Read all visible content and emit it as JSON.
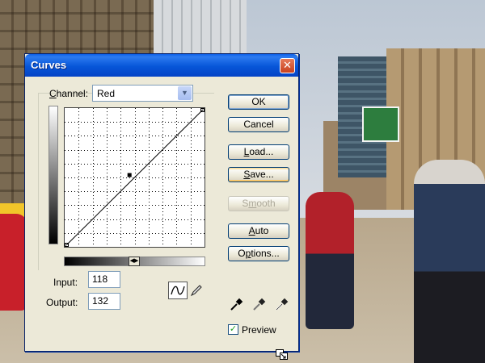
{
  "dialog": {
    "title": "Curves",
    "close_symbol": "✕"
  },
  "channel": {
    "label_prefix": "",
    "label_underlined": "C",
    "label_rest": "hannel:",
    "value": "Red"
  },
  "input": {
    "label": "Input:",
    "value": "118"
  },
  "output": {
    "label": "Output:",
    "value": "132"
  },
  "buttons": {
    "ok": "OK",
    "cancel": "Cancel",
    "load_u": "L",
    "load_rest": "oad...",
    "save_u": "S",
    "save_rest": "ave...",
    "smooth_pre": "S",
    "smooth_u": "m",
    "smooth_rest": "ooth",
    "auto_u": "A",
    "auto_rest": "uto",
    "options_pre": "O",
    "options_u": "p",
    "options_rest": "tions..."
  },
  "preview": {
    "label": "Preview",
    "checked": true
  },
  "curve": {
    "control_point_input": 118,
    "control_point_output": 132
  },
  "icons": {
    "curve_tool": "curve-tool-icon",
    "pencil_tool": "pencil-icon",
    "eyedroppers": [
      "black-eyedropper-icon",
      "gray-eyedropper-icon",
      "white-eyedropper-icon"
    ],
    "expand": "expand-icon"
  },
  "colors": {
    "titlebar": "#0756d8",
    "dialog_bg": "#ece9d8",
    "close_button": "#c8401e",
    "check": "#21a121"
  }
}
